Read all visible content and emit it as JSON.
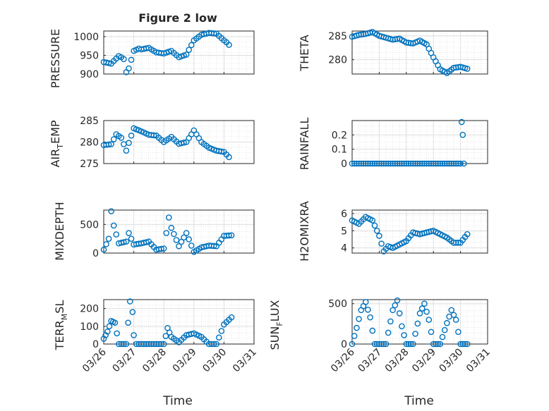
{
  "figure": {
    "title": "Figure 2 low"
  },
  "chart_data": [
    {
      "type": "scatter",
      "title": "Figure 2 low",
      "ylabel": "PRESSURE",
      "xlabel": "",
      "x_range": [
        "03/26",
        "03/31"
      ],
      "ylim": [
        900,
        1015
      ],
      "yticks": [
        "900",
        "950",
        "1000"
      ],
      "xticks": [],
      "grid": true,
      "color": "#0072BD",
      "x": [
        "03/26 00:00",
        "03/26 06:00",
        "03/26 12:00",
        "03/26 14:00",
        "03/26 16:00",
        "03/26 18:00",
        "03/26 20:00",
        "03/26 22:00",
        "03/27 00:00",
        "03/27 02:00",
        "03/27 04:00",
        "03/27 06:00",
        "03/27 12:00",
        "03/27 18:00",
        "03/28 00:00",
        "03/28 06:00",
        "03/28 12:00",
        "03/28 18:00",
        "03/29 00:00",
        "03/29 06:00",
        "03/29 12:00",
        "03/29 18:00",
        "03/30 00:00",
        "03/30 02:00",
        "03/30 04:00"
      ],
      "y": [
        932,
        928,
        948,
        945,
        940,
        905,
        915,
        938,
        962,
        965,
        968,
        966,
        970,
        958,
        955,
        962,
        945,
        952,
        990,
        1005,
        1010,
        1008,
        990,
        985,
        978
      ]
    },
    {
      "type": "scatter",
      "title": "",
      "ylabel": "THETA",
      "xlabel": "",
      "x_range": [
        "03/26",
        "03/31"
      ],
      "ylim": [
        277,
        286
      ],
      "yticks": [
        "280",
        "285"
      ],
      "xticks": [],
      "grid": true,
      "color": "#0072BD",
      "x": [
        "03/26 00:00",
        "03/26 06:00",
        "03/26 12:00",
        "03/26 18:00",
        "03/27 00:00",
        "03/27 06:00",
        "03/27 12:00",
        "03/27 18:00",
        "03/28 00:00",
        "03/28 06:00",
        "03/28 12:00",
        "03/28 18:00",
        "03/29 00:00",
        "03/29 06:00",
        "03/29 12:00",
        "03/29 18:00",
        "03/30 00:00",
        "03/30 06:00"
      ],
      "y": [
        284.8,
        285.2,
        285.4,
        285.8,
        285.0,
        284.6,
        284.2,
        284.4,
        283.6,
        283.4,
        284.0,
        283.2,
        280.5,
        278.0,
        277.2,
        278.3,
        278.5,
        278.1
      ]
    },
    {
      "type": "scatter",
      "title": "",
      "ylabel": "AIR_TEMP",
      "xlabel": "",
      "x_range": [
        "03/26",
        "03/31"
      ],
      "ylim": [
        275,
        285
      ],
      "yticks": [
        "275",
        "280",
        "285"
      ],
      "xticks": [],
      "grid": true,
      "color": "#0072BD",
      "x": [
        "03/26 00:00",
        "03/26 06:00",
        "03/26 10:00",
        "03/26 14:00",
        "03/26 18:00",
        "03/26 20:00",
        "03/27 00:00",
        "03/27 06:00",
        "03/27 12:00",
        "03/27 18:00",
        "03/28 00:00",
        "03/28 06:00",
        "03/28 12:00",
        "03/28 18:00",
        "03/29 00:00",
        "03/29 06:00",
        "03/29 12:00",
        "03/29 18:00",
        "03/30 00:00",
        "03/30 04:00"
      ],
      "y": [
        279.3,
        279.5,
        281.8,
        281.0,
        278.0,
        279.8,
        283.2,
        282.5,
        281.7,
        281.5,
        280.0,
        281.2,
        279.6,
        280.0,
        282.7,
        280.0,
        278.7,
        278.0,
        277.7,
        276.5
      ]
    },
    {
      "type": "scatter",
      "title": "",
      "ylabel": "RAINFALL",
      "xlabel": "",
      "x_range": [
        "03/26",
        "03/31"
      ],
      "ylim": [
        0,
        0.3
      ],
      "yticks": [
        "0",
        "0.1",
        "0.2"
      ],
      "xticks": [],
      "grid": true,
      "color": "#0072BD",
      "x": [
        "03/26 00:00",
        "03/26 12:00",
        "03/27 00:00",
        "03/27 12:00",
        "03/28 00:00",
        "03/28 12:00",
        "03/29 00:00",
        "03/29 12:00",
        "03/30 00:00",
        "03/30 01:00",
        "03/30 02:00",
        "03/30 03:00"
      ],
      "y": [
        0,
        0,
        0,
        0,
        0,
        0,
        0,
        0,
        0,
        0.29,
        0.2,
        0
      ]
    },
    {
      "type": "scatter",
      "title": "",
      "ylabel": "MIXDEPTH",
      "xlabel": "",
      "x_range": [
        "03/26",
        "03/31"
      ],
      "ylim": [
        0,
        750
      ],
      "yticks": [
        "0",
        "500"
      ],
      "xticks": [],
      "grid": true,
      "color": "#0072BD",
      "x": [
        "03/26 00:00",
        "03/26 04:00",
        "03/26 06:00",
        "03/26 08:00",
        "03/26 12:00",
        "03/26 18:00",
        "03/26 20:00",
        "03/27 00:00",
        "03/27 06:00",
        "03/27 12:00",
        "03/27 18:00",
        "03/28 00:00",
        "03/28 04:00",
        "03/28 06:00",
        "03/28 12:00",
        "03/28 18:00",
        "03/29 00:00",
        "03/29 06:00",
        "03/29 12:00",
        "03/29 18:00",
        "03/30 00:00",
        "03/30 06:00"
      ],
      "y": [
        60,
        250,
        730,
        480,
        170,
        200,
        350,
        150,
        170,
        200,
        60,
        80,
        620,
        440,
        120,
        350,
        20,
        100,
        130,
        120,
        300,
        310
      ]
    },
    {
      "type": "scatter",
      "title": "",
      "ylabel": "H2OMIXRA",
      "xlabel": "",
      "x_range": [
        "03/26",
        "03/31"
      ],
      "ylim": [
        3.7,
        6.2
      ],
      "yticks": [
        "4",
        "5",
        "6"
      ],
      "xticks": [],
      "grid": true,
      "color": "#0072BD",
      "x": [
        "03/26 00:00",
        "03/26 06:00",
        "03/26 12:00",
        "03/26 18:00",
        "03/27 00:00",
        "03/27 04:00",
        "03/27 08:00",
        "03/27 12:00",
        "03/27 18:00",
        "03/28 00:00",
        "03/28 06:00",
        "03/28 12:00",
        "03/28 18:00",
        "03/29 00:00",
        "03/29 06:00",
        "03/29 12:00",
        "03/29 18:00",
        "03/30 00:00",
        "03/30 06:00"
      ],
      "y": [
        5.6,
        5.4,
        5.8,
        5.6,
        4.7,
        3.8,
        4.1,
        4.0,
        4.2,
        4.4,
        4.9,
        4.8,
        4.9,
        5.0,
        4.8,
        4.6,
        4.3,
        4.3,
        4.8
      ]
    },
    {
      "type": "scatter",
      "title": "",
      "ylabel": "TERR_MSL",
      "xlabel": "Time",
      "x_range": [
        "03/26",
        "03/31"
      ],
      "ylim": [
        0,
        250
      ],
      "yticks": [
        "0",
        "100",
        "200"
      ],
      "xticks": [
        "03/26",
        "03/27",
        "03/28",
        "03/29",
        "03/30",
        "03/31"
      ],
      "grid": true,
      "color": "#0072BD",
      "x": [
        "03/26 00:00",
        "03/26 03:00",
        "03/26 06:00",
        "03/26 09:00",
        "03/26 12:00",
        "03/26 18:00",
        "03/26 21:00",
        "03/26 23:00",
        "03/27 00:00",
        "03/27 02:00",
        "03/27 12:00",
        "03/28 00:00",
        "03/28 03:00",
        "03/28 06:00",
        "03/28 12:00",
        "03/28 18:00",
        "03/29 00:00",
        "03/29 06:00",
        "03/29 12:00",
        "03/29 18:00",
        "03/30 00:00",
        "03/30 06:00"
      ],
      "y": [
        30,
        70,
        130,
        120,
        0,
        0,
        240,
        180,
        50,
        0,
        0,
        0,
        90,
        40,
        10,
        50,
        60,
        40,
        0,
        0,
        110,
        150
      ]
    },
    {
      "type": "scatter",
      "title": "",
      "ylabel": "SUN_FLUX",
      "xlabel": "Time",
      "x_range": [
        "03/26",
        "03/31"
      ],
      "ylim": [
        0,
        550
      ],
      "yticks": [
        "0",
        "500"
      ],
      "xticks": [
        "03/26",
        "03/27",
        "03/28",
        "03/29",
        "03/30",
        "03/31"
      ],
      "grid": true,
      "color": "#0072BD",
      "x": [
        "03/26 00:00",
        "03/26 04:00",
        "03/26 08:00",
        "03/26 12:00",
        "03/26 16:00",
        "03/26 20:00",
        "03/27 00:00",
        "03/27 06:00",
        "03/27 12:00",
        "03/27 16:00",
        "03/27 20:00",
        "03/28 00:00",
        "03/28 06:00",
        "03/28 12:00",
        "03/28 16:00",
        "03/28 20:00",
        "03/29 00:00",
        "03/29 06:00",
        "03/29 12:00",
        "03/29 16:00",
        "03/29 20:00",
        "03/30 00:00",
        "03/30 06:00"
      ],
      "y": [
        0,
        200,
        420,
        520,
        330,
        0,
        0,
        0,
        420,
        540,
        220,
        0,
        0,
        380,
        500,
        300,
        0,
        0,
        260,
        420,
        300,
        0,
        0
      ]
    }
  ]
}
